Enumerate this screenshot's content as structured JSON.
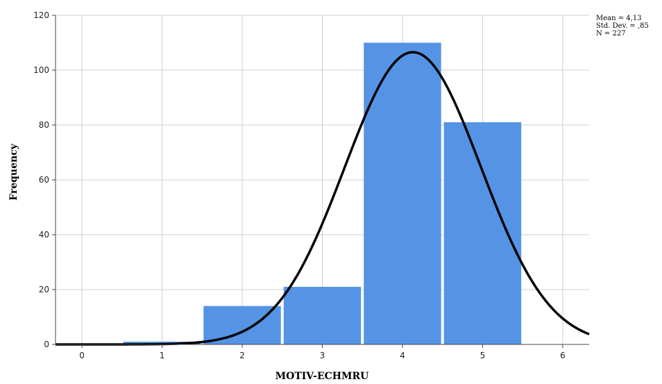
{
  "chart_data": {
    "type": "bar",
    "subtype": "histogram",
    "xlabel": "MOTIV-ECHMRU",
    "ylabel": "Frequency",
    "xlim": [
      -0.33,
      6.33
    ],
    "ylim": [
      0,
      120
    ],
    "x_ticks": [
      0,
      1,
      2,
      3,
      4,
      5,
      6
    ],
    "y_ticks": [
      0,
      20,
      40,
      60,
      80,
      100,
      120
    ],
    "bins": [
      {
        "center": 1,
        "value": 1
      },
      {
        "center": 2,
        "value": 14
      },
      {
        "center": 3,
        "value": 21
      },
      {
        "center": 4,
        "value": 110
      },
      {
        "center": 5,
        "value": 81
      }
    ],
    "bin_width": 1,
    "bar_color": "#5594E4",
    "grid": true,
    "normal_curve": {
      "mean": 4.13,
      "sd": 0.85,
      "n": 227,
      "color": "#000000"
    },
    "stats_box": {
      "placement": "top-right",
      "lines": [
        "Mean = 4,13",
        "Std. Dev. = ,85",
        "N = 227"
      ]
    }
  }
}
